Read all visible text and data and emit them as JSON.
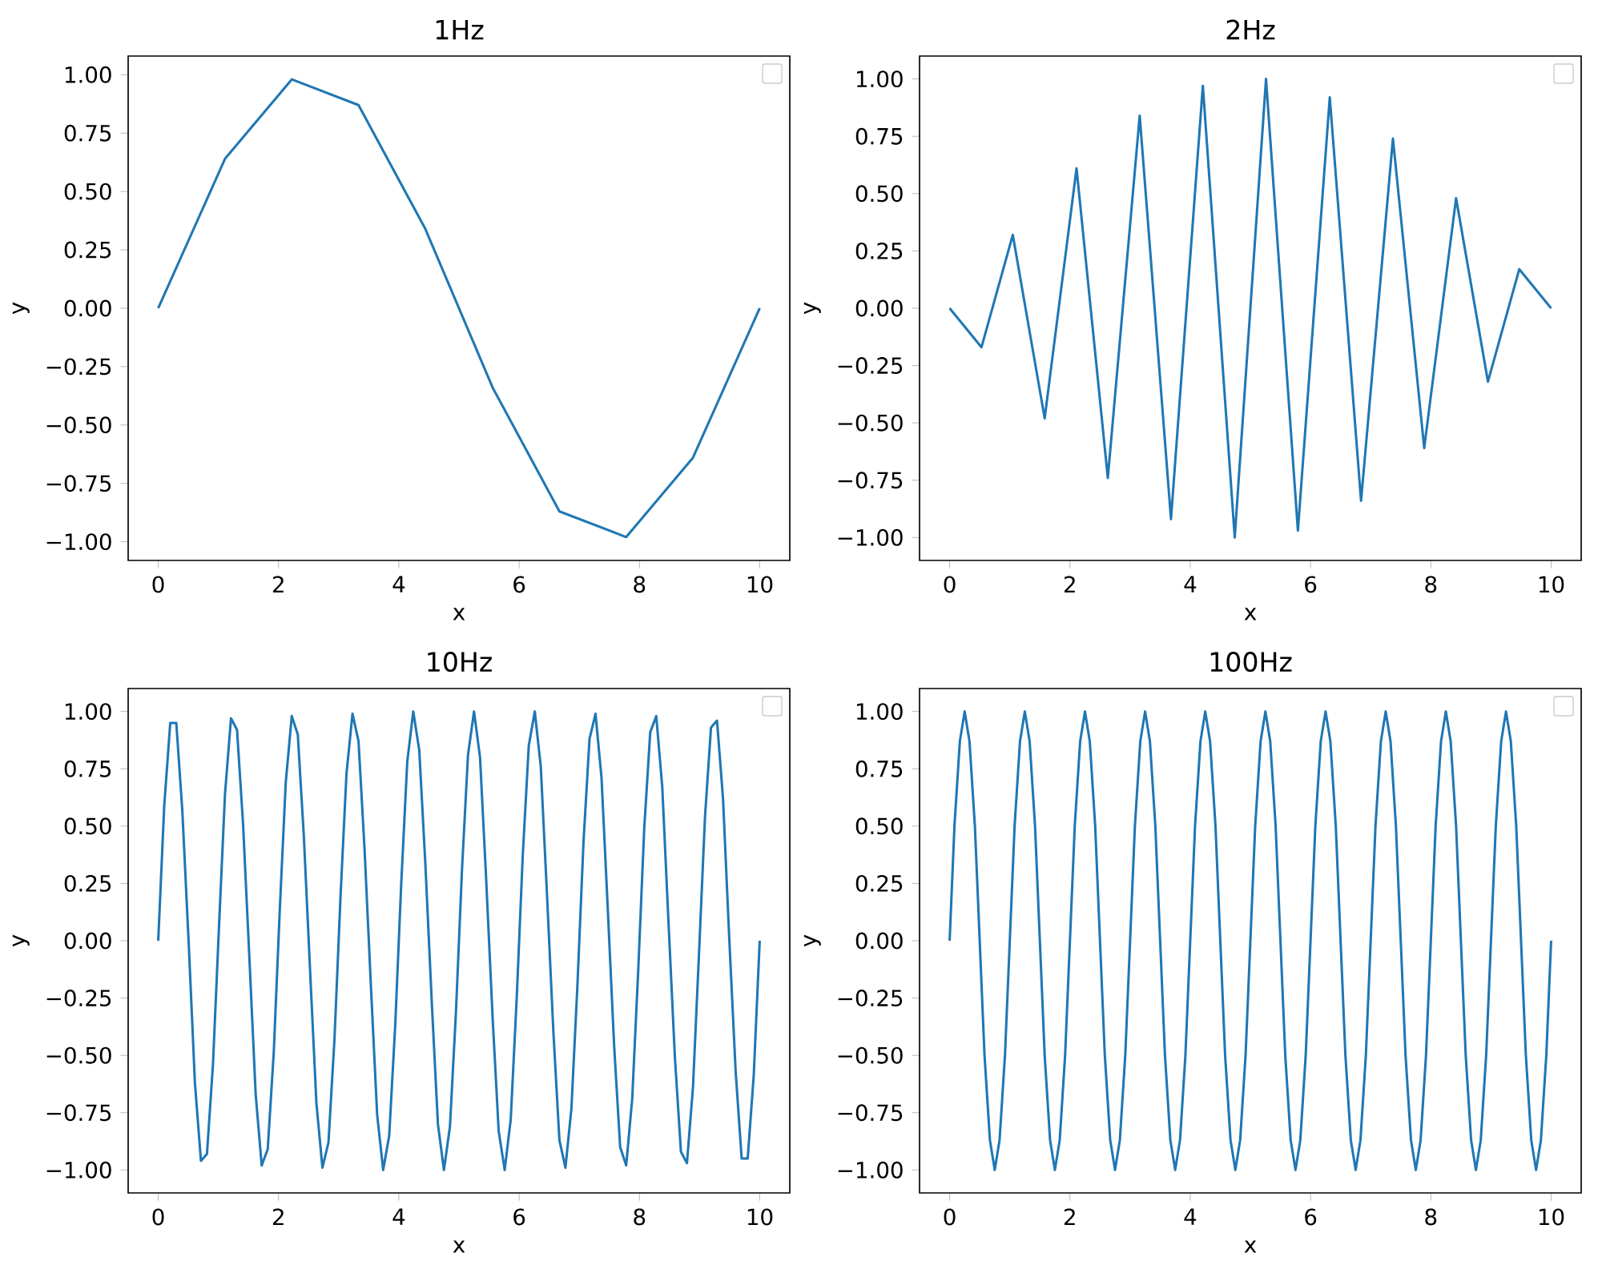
{
  "chart_data": [
    {
      "type": "line",
      "title": "1Hz",
      "xlabel": "x",
      "ylabel": "y",
      "color": "#1f77b4",
      "x": [
        0,
        1.11,
        2.22,
        3.33,
        4.44,
        5.56,
        6.67,
        7.78,
        8.89,
        10
      ],
      "values": [
        0,
        0.64,
        0.98,
        0.87,
        0.34,
        -0.34,
        -0.87,
        -0.98,
        -0.64,
        0
      ],
      "xlim": [
        -0.5,
        10.5
      ],
      "ylim": [
        -1.08,
        1.08
      ],
      "xticks": [
        0,
        2,
        4,
        6,
        8,
        10
      ],
      "yticks": [
        {
          "value": -1,
          "label": "−1.00"
        },
        {
          "value": -0.75,
          "label": "−0.75"
        },
        {
          "value": -0.5,
          "label": "−0.50"
        },
        {
          "value": -0.25,
          "label": "−0.25"
        },
        {
          "value": 0,
          "label": "0.00"
        },
        {
          "value": 0.25,
          "label": "0.25"
        },
        {
          "value": 0.5,
          "label": "0.50"
        },
        {
          "value": 0.75,
          "label": "0.75"
        },
        {
          "value": 1,
          "label": "1.00"
        }
      ]
    },
    {
      "type": "line",
      "title": "2Hz",
      "xlabel": "x",
      "ylabel": "y",
      "color": "#1f77b4",
      "x": [
        0,
        0.53,
        1.05,
        1.58,
        2.11,
        2.63,
        3.16,
        3.68,
        4.21,
        4.74,
        5.26,
        5.79,
        6.32,
        6.84,
        7.37,
        7.89,
        8.42,
        8.95,
        9.47,
        10
      ],
      "values": [
        0,
        -0.17,
        0.32,
        -0.48,
        0.61,
        -0.74,
        0.84,
        -0.92,
        0.97,
        -1.0,
        1.0,
        -0.97,
        0.92,
        -0.84,
        0.74,
        -0.61,
        0.48,
        -0.32,
        0.17,
        0
      ],
      "xlim": [
        -0.5,
        10.5
      ],
      "ylim": [
        -1.1,
        1.1
      ],
      "xticks": [
        0,
        2,
        4,
        6,
        8,
        10
      ],
      "yticks": [
        {
          "value": -1,
          "label": "−1.00"
        },
        {
          "value": -0.75,
          "label": "−0.75"
        },
        {
          "value": -0.5,
          "label": "−0.50"
        },
        {
          "value": -0.25,
          "label": "−0.25"
        },
        {
          "value": 0,
          "label": "0.00"
        },
        {
          "value": 0.25,
          "label": "0.25"
        },
        {
          "value": 0.5,
          "label": "0.50"
        },
        {
          "value": 0.75,
          "label": "0.75"
        },
        {
          "value": 1,
          "label": "1.00"
        }
      ]
    },
    {
      "type": "line",
      "title": "10Hz",
      "xlabel": "x",
      "ylabel": "y",
      "color": "#1f77b4",
      "x": [
        0,
        0.1,
        0.2,
        0.3,
        0.4,
        0.51,
        0.61,
        0.71,
        0.81,
        0.91,
        1.01,
        1.11,
        1.21,
        1.31,
        1.41,
        1.52,
        1.62,
        1.72,
        1.82,
        1.92,
        2.02,
        2.12,
        2.22,
        2.32,
        2.42,
        2.53,
        2.63,
        2.73,
        2.83,
        2.93,
        3.03,
        3.13,
        3.23,
        3.33,
        3.43,
        3.54,
        3.64,
        3.74,
        3.84,
        3.94,
        4.04,
        4.14,
        4.24,
        4.34,
        4.44,
        4.55,
        4.65,
        4.75,
        4.85,
        4.95,
        5.05,
        5.15,
        5.25,
        5.35,
        5.45,
        5.56,
        5.66,
        5.76,
        5.86,
        5.96,
        6.06,
        6.16,
        6.26,
        6.36,
        6.46,
        6.57,
        6.67,
        6.77,
        6.87,
        6.97,
        7.07,
        7.17,
        7.27,
        7.37,
        7.47,
        7.58,
        7.68,
        7.78,
        7.88,
        7.98,
        8.08,
        8.18,
        8.28,
        8.38,
        8.48,
        8.59,
        8.69,
        8.79,
        8.89,
        8.99,
        9.09,
        9.19,
        9.29,
        9.39,
        9.49,
        9.6,
        9.7,
        9.8,
        9.9,
        10
      ],
      "values": [
        0,
        0.59,
        0.95,
        0.95,
        0.57,
        -0.03,
        -0.62,
        -0.96,
        -0.93,
        -0.54,
        0.06,
        0.64,
        0.97,
        0.92,
        0.51,
        -0.1,
        -0.67,
        -0.98,
        -0.91,
        -0.49,
        0.13,
        0.69,
        0.98,
        0.9,
        0.46,
        -0.16,
        -0.71,
        -0.99,
        -0.88,
        -0.43,
        0.19,
        0.73,
        0.99,
        0.87,
        0.4,
        -0.22,
        -0.76,
        -1.0,
        -0.85,
        -0.37,
        0.25,
        0.78,
        1.0,
        0.83,
        0.34,
        -0.28,
        -0.8,
        -1.0,
        -0.81,
        -0.31,
        0.31,
        0.81,
        1.0,
        0.8,
        0.28,
        -0.34,
        -0.83,
        -1.0,
        -0.78,
        -0.25,
        0.37,
        0.85,
        1.0,
        0.76,
        0.22,
        -0.4,
        -0.87,
        -0.99,
        -0.73,
        -0.19,
        0.43,
        0.88,
        0.99,
        0.71,
        0.16,
        -0.46,
        -0.9,
        -0.98,
        -0.69,
        -0.13,
        0.49,
        0.91,
        0.98,
        0.67,
        0.1,
        -0.51,
        -0.92,
        -0.97,
        -0.64,
        -0.06,
        0.54,
        0.93,
        0.96,
        0.62,
        0.03,
        -0.57,
        -0.95,
        -0.95,
        -0.59,
        0
      ],
      "xlim": [
        -0.5,
        10.5
      ],
      "ylim": [
        -1.1,
        1.1
      ],
      "xticks": [
        0,
        2,
        4,
        6,
        8,
        10
      ],
      "yticks": [
        {
          "value": -1,
          "label": "−1.00"
        },
        {
          "value": -0.75,
          "label": "−0.75"
        },
        {
          "value": -0.5,
          "label": "−0.50"
        },
        {
          "value": -0.25,
          "label": "−0.25"
        },
        {
          "value": 0,
          "label": "0.00"
        },
        {
          "value": 0.25,
          "label": "0.25"
        },
        {
          "value": 0.5,
          "label": "0.50"
        },
        {
          "value": 0.75,
          "label": "0.75"
        },
        {
          "value": 1,
          "label": "1.00"
        }
      ]
    },
    {
      "type": "line",
      "title": "100Hz",
      "xlabel": "x",
      "ylabel": "y",
      "color": "#1f77b4",
      "x": [
        0,
        0.08,
        0.17,
        0.25,
        0.33,
        0.42,
        0.5,
        0.58,
        0.67,
        0.75,
        0.83,
        0.92,
        1,
        1.08,
        1.17,
        1.25,
        1.33,
        1.42,
        1.5,
        1.58,
        1.67,
        1.75,
        1.83,
        1.92,
        2,
        2.08,
        2.17,
        2.25,
        2.33,
        2.42,
        2.5,
        2.58,
        2.67,
        2.75,
        2.83,
        2.92,
        3,
        3.08,
        3.17,
        3.25,
        3.33,
        3.42,
        3.5,
        3.58,
        3.67,
        3.75,
        3.83,
        3.92,
        4,
        4.08,
        4.17,
        4.25,
        4.33,
        4.42,
        4.5,
        4.58,
        4.67,
        4.75,
        4.83,
        4.92,
        5,
        5.08,
        5.17,
        5.25,
        5.33,
        5.42,
        5.5,
        5.58,
        5.67,
        5.75,
        5.83,
        5.92,
        6,
        6.08,
        6.17,
        6.25,
        6.33,
        6.42,
        6.5,
        6.58,
        6.67,
        6.75,
        6.83,
        6.92,
        7,
        7.08,
        7.17,
        7.25,
        7.33,
        7.42,
        7.5,
        7.58,
        7.67,
        7.75,
        7.83,
        7.92,
        8,
        8.08,
        8.17,
        8.25,
        8.33,
        8.42,
        8.5,
        8.58,
        8.67,
        8.75,
        8.83,
        8.92,
        9,
        9.08,
        9.17,
        9.25,
        9.33,
        9.42,
        9.5,
        9.58,
        9.67,
        9.75,
        9.83,
        9.92,
        10
      ],
      "values": [
        0,
        0.5,
        0.87,
        1,
        0.87,
        0.5,
        0,
        -0.5,
        -0.87,
        -1,
        -0.87,
        -0.5,
        0,
        0.5,
        0.87,
        1,
        0.87,
        0.5,
        0,
        -0.5,
        -0.87,
        -1,
        -0.87,
        -0.5,
        0,
        0.5,
        0.87,
        1,
        0.87,
        0.5,
        0,
        -0.5,
        -0.87,
        -1,
        -0.87,
        -0.5,
        0,
        0.5,
        0.87,
        1,
        0.87,
        0.5,
        0,
        -0.5,
        -0.87,
        -1,
        -0.87,
        -0.5,
        0,
        0.5,
        0.87,
        1,
        0.87,
        0.5,
        0,
        -0.5,
        -0.87,
        -1,
        -0.87,
        -0.5,
        0,
        0.5,
        0.87,
        1,
        0.87,
        0.5,
        0,
        -0.5,
        -0.87,
        -1,
        -0.87,
        -0.5,
        0,
        0.5,
        0.87,
        1,
        0.87,
        0.5,
        0,
        -0.5,
        -0.87,
        -1,
        -0.87,
        -0.5,
        0,
        0.5,
        0.87,
        1,
        0.87,
        0.5,
        0,
        -0.5,
        -0.87,
        -1,
        -0.87,
        -0.5,
        0,
        0.5,
        0.87,
        1,
        0.87,
        0.5,
        0,
        -0.5,
        -0.87,
        -1,
        -0.87,
        -0.5,
        0,
        0.5,
        0.87,
        1,
        0.87,
        0.5,
        0,
        -0.5,
        -0.87,
        -1,
        -0.87,
        -0.5,
        0
      ],
      "xlim": [
        -0.5,
        10.5
      ],
      "ylim": [
        -1.1,
        1.1
      ],
      "xticks": [
        0,
        2,
        4,
        6,
        8,
        10
      ],
      "yticks": [
        {
          "value": -1,
          "label": "−1.00"
        },
        {
          "value": -0.75,
          "label": "−0.75"
        },
        {
          "value": -0.5,
          "label": "−0.50"
        },
        {
          "value": -0.25,
          "label": "−0.25"
        },
        {
          "value": 0,
          "label": "0.00"
        },
        {
          "value": 0.25,
          "label": "0.25"
        },
        {
          "value": 0.5,
          "label": "0.50"
        },
        {
          "value": 0.75,
          "label": "0.75"
        },
        {
          "value": 1,
          "label": "1.00"
        }
      ]
    }
  ]
}
